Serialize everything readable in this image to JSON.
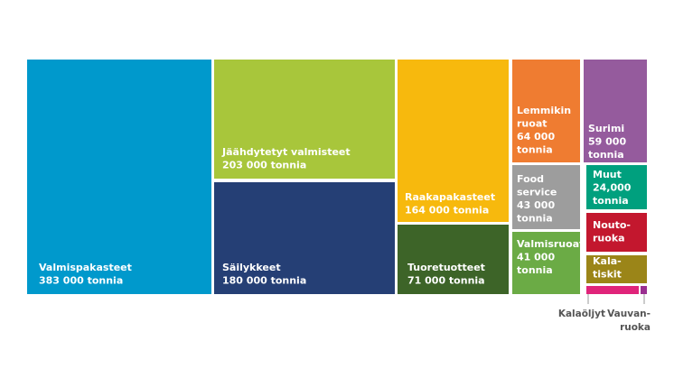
{
  "chart_data": {
    "type": "treemap",
    "tiles": [
      {
        "id": "valmispakasteet",
        "lines": [
          "Valmispakasteet",
          "383 000 tonnia"
        ],
        "value": 383000,
        "color": "#0099cc"
      },
      {
        "id": "jaahdytetyt",
        "lines": [
          "Jäähdytetyt valmisteet",
          "203 000 tonnia"
        ],
        "value": 203000,
        "color": "#a8c63b"
      },
      {
        "id": "sailykkeet",
        "lines": [
          "Säilykkeet",
          "180 000 tonnia"
        ],
        "value": 180000,
        "color": "#253f75"
      },
      {
        "id": "raakapakasteet",
        "lines": [
          "Raakapakasteet",
          "164 000 tonnia"
        ],
        "value": 164000,
        "color": "#f7b90d"
      },
      {
        "id": "tuoretuotteet",
        "lines": [
          "Tuoretuotteet",
          "71 000 tonnia"
        ],
        "value": 71000,
        "color": "#3d6428"
      },
      {
        "id": "lemmikin",
        "lines": [
          "Lemmikin",
          "ruoat",
          "64 000",
          "tonnia"
        ],
        "value": 64000,
        "color": "#ef7c31"
      },
      {
        "id": "food-service",
        "lines": [
          "Food",
          "service",
          "43 000",
          "tonnia"
        ],
        "value": 43000,
        "color": "#9d9d9d"
      },
      {
        "id": "valmisruoat",
        "lines": [
          "Valmisruoat",
          "41 000",
          "tonnia"
        ],
        "value": 41000,
        "color": "#6bab45"
      },
      {
        "id": "surimi",
        "lines": [
          "Surimi",
          "59 000",
          "tonnia"
        ],
        "value": 59000,
        "color": "#955b9d"
      },
      {
        "id": "muut",
        "lines": [
          "Muut",
          "24,000",
          "tonnia"
        ],
        "value": 24000,
        "color": "#00a07e"
      },
      {
        "id": "noutoruoka",
        "lines": [
          "Nouto-",
          "ruoka"
        ],
        "value": null,
        "color": "#c3172e"
      },
      {
        "id": "kalatiskit",
        "lines": [
          "Kala-",
          "tiskit"
        ],
        "value": null,
        "color": "#9b8518"
      },
      {
        "id": "kalaoljyt",
        "lines": [
          "Kalaöljyt"
        ],
        "value": null,
        "color": "#e0247a"
      },
      {
        "id": "vauvanruoka",
        "lines": [
          "Vauvan-",
          "ruoka"
        ],
        "value": null,
        "color": "#9a2f90"
      }
    ]
  }
}
